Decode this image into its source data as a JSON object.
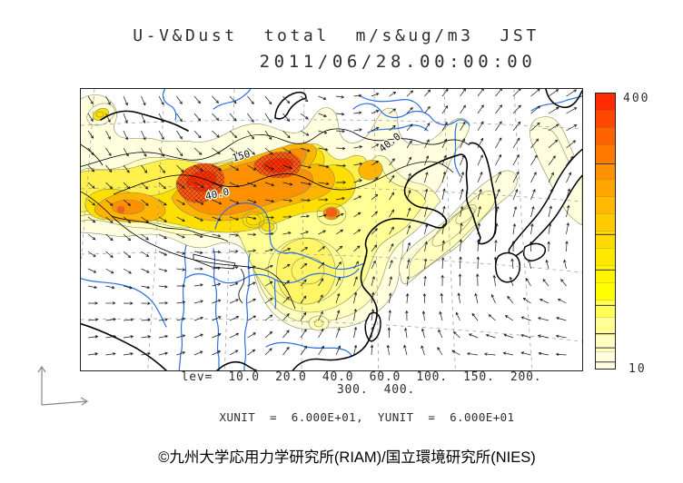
{
  "header": {
    "title_line1": "U-V&Dust  total  m/s&ug/m3  JST",
    "title_line2": "2011/06/28.00:00:00"
  },
  "colorbar": {
    "max_label": "400",
    "min_label": "10",
    "value_range": [
      10,
      400
    ],
    "tick_values": [
      20,
      40,
      60,
      100,
      150,
      200,
      300
    ],
    "colors_top_to_bottom": [
      "#ff2a00",
      "#ff4700",
      "#ff6300",
      "#ff7b00",
      "#ff9100",
      "#ffa600",
      "#ffb900",
      "#ffca00",
      "#ffda00",
      "#ffe800",
      "#fff500",
      "#ffff00",
      "#ffff55",
      "#ffff94",
      "#ffffc2",
      "#ffffe0"
    ]
  },
  "footer": {
    "lev_line1": "lev=  10.0  20.0  40.0  60.0  100.  150.  200.",
    "lev_line2": "300.  400.",
    "unit_line": "XUNIT  =  6.000E+01,  YUNIT  =  6.000E+01",
    "copyright": "©九州大学応用力学研究所(RIAM)/国立環境研究所(NIES)"
  },
  "chart_data": {
    "type": "heatmap",
    "title": "U-V&Dust total m/s&ug/m3 JST",
    "timestamp": "2011/06/28.00:00:00",
    "contour_levels": [
      10,
      20,
      40,
      60,
      100,
      150,
      200,
      300,
      400
    ],
    "colorbar_range": [
      10,
      400
    ],
    "xunit": "6.000E+01",
    "yunit": "6.000E+01",
    "contour_labels": [
      "150",
      "40.0",
      "40.0"
    ],
    "legend_position": "right",
    "overlays": [
      "wind vectors",
      "filled dust contours",
      "coastlines",
      "rivers",
      "dashed graticule"
    ],
    "level_colors": {
      "10": "#ffffdf",
      "20": "#ffffc0",
      "40": "#ffff96",
      "60": "#fff04d",
      "100": "#ffdf00",
      "150": "#ffb400",
      "200": "#ff9000",
      "300": "#ff5a14",
      "400": "#ff2e00",
      "blob_core": "#fff566",
      "spot_core": "#ffe200"
    }
  }
}
